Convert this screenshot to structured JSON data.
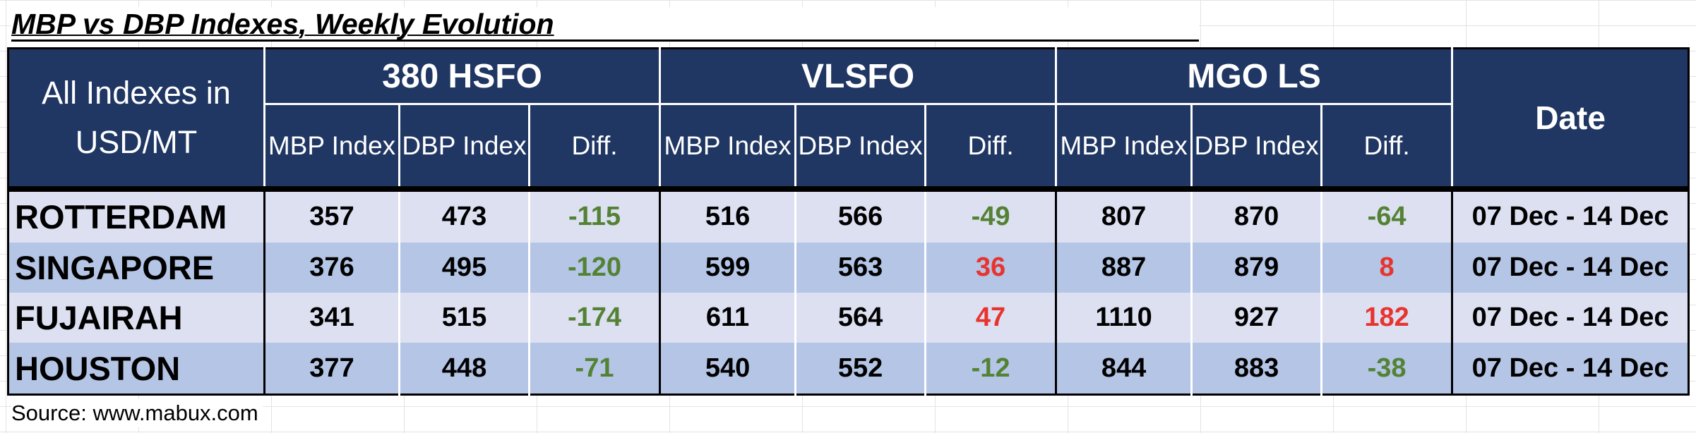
{
  "title": "MBP vs DBP Indexes, Weekly Evolution",
  "header": {
    "units_label": "All Indexes in USD/MT",
    "groups": [
      "380 HSFO",
      "VLSFO",
      "MGO LS"
    ],
    "sub_columns": [
      "MBP Index",
      "DBP Index",
      "Diff."
    ],
    "date_label": "Date"
  },
  "rows": [
    {
      "port": "ROTTERDAM",
      "hsfo": {
        "mbp": "357",
        "dbp": "473",
        "diff": "-115"
      },
      "vlsfo": {
        "mbp": "516",
        "dbp": "566",
        "diff": "-49"
      },
      "mgo": {
        "mbp": "807",
        "dbp": "870",
        "diff": "-64"
      },
      "date": "07 Dec - 14 Dec"
    },
    {
      "port": "SINGAPORE",
      "hsfo": {
        "mbp": "376",
        "dbp": "495",
        "diff": "-120"
      },
      "vlsfo": {
        "mbp": "599",
        "dbp": "563",
        "diff": "36"
      },
      "mgo": {
        "mbp": "887",
        "dbp": "879",
        "diff": "8"
      },
      "date": "07 Dec - 14 Dec"
    },
    {
      "port": "FUJAIRAH",
      "hsfo": {
        "mbp": "341",
        "dbp": "515",
        "diff": "-174"
      },
      "vlsfo": {
        "mbp": "611",
        "dbp": "564",
        "diff": "47"
      },
      "mgo": {
        "mbp": "1110",
        "dbp": "927",
        "diff": "182"
      },
      "date": "07 Dec - 14 Dec"
    },
    {
      "port": "HOUSTON",
      "hsfo": {
        "mbp": "377",
        "dbp": "448",
        "diff": "-71"
      },
      "vlsfo": {
        "mbp": "540",
        "dbp": "552",
        "diff": "-12"
      },
      "mgo": {
        "mbp": "844",
        "dbp": "883",
        "diff": "-38"
      },
      "date": "07 Dec - 14 Dec"
    }
  ],
  "colors": {
    "header_bg": "#203764",
    "row_light": "#dce0f1",
    "row_dark": "#b4c5e6",
    "negative_diff": "#548235",
    "positive_diff": "#e8342e"
  },
  "source": "Source: www.mabux.com"
}
